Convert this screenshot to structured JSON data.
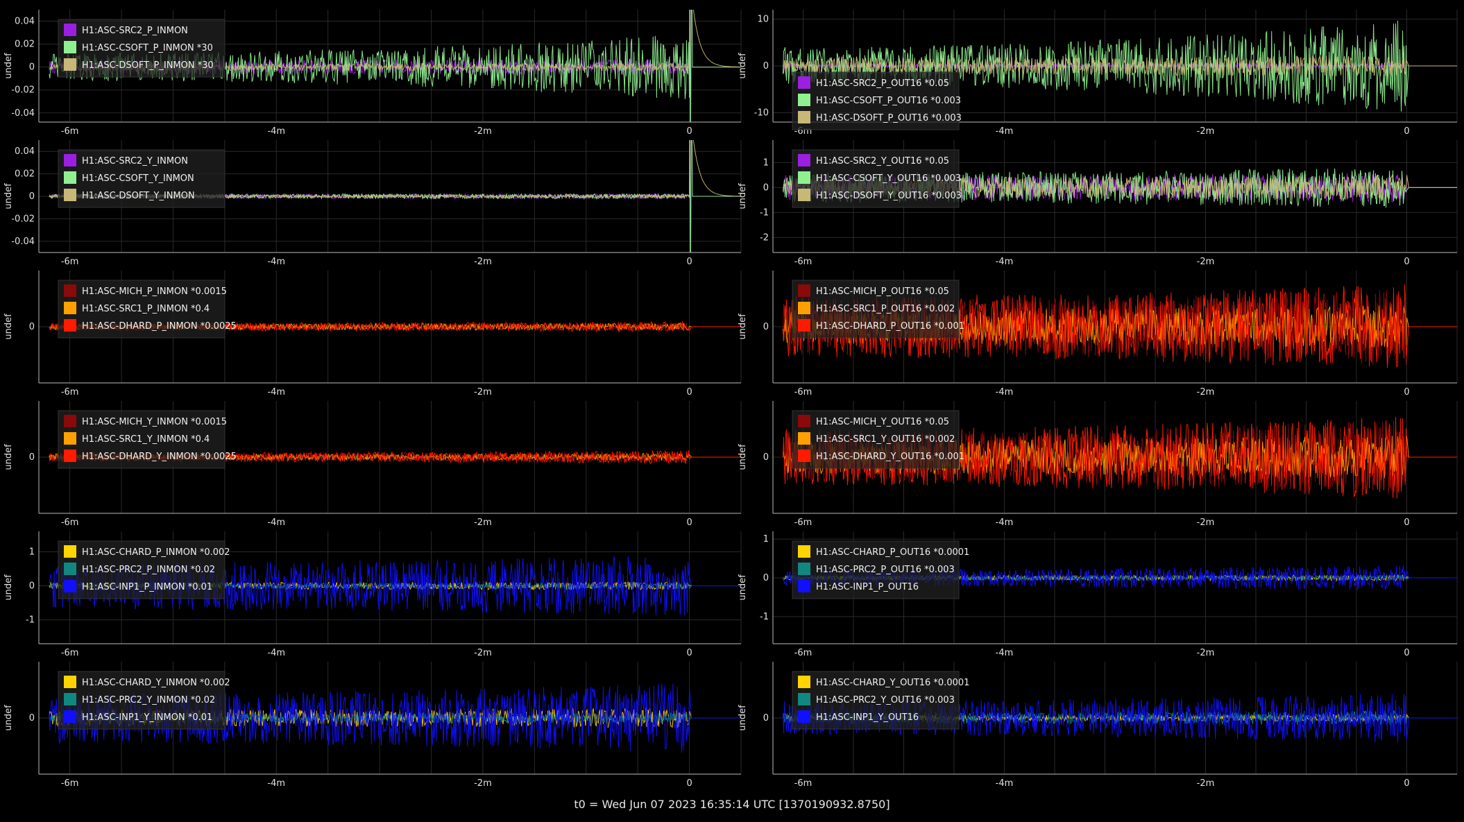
{
  "footer": "t0 = Wed Jun 07 2023 16:35:14 UTC [1370190932.8750]",
  "colors": {
    "background": "#000000",
    "grid": "#2a2a2a",
    "axis": "#bbbbbb",
    "legend_bg": "#222222"
  },
  "chart_data": [
    {
      "type": "line",
      "ylabel": "undef",
      "xticks": [
        "-6m",
        "-4m",
        "-2m",
        "0"
      ],
      "xtick_values": [
        -6,
        -4,
        -2,
        0
      ],
      "xlim": [
        -6.3,
        0.5
      ],
      "yticks": [
        "0.04",
        "0.02",
        "0",
        "-0.02",
        "-0.04"
      ],
      "ytick_values": [
        0.04,
        0.02,
        0,
        -0.02,
        -0.04
      ],
      "ylim": [
        -0.048,
        0.05
      ],
      "legend": "top-left",
      "series": [
        {
          "name": "H1:ASC-SRC2_P_INMON",
          "color": "#9b1fe0",
          "amp": 0.006,
          "grow": 0.2,
          "end": "spike"
        },
        {
          "name": "H1:ASC-CSOFT_P_INMON *30",
          "color": "#90f090",
          "amp": 0.012,
          "grow": 1.4,
          "end": "spike"
        },
        {
          "name": "H1:ASC-DSOFT_P_INMON *30",
          "color": "#c8b878",
          "amp": 0.003,
          "grow": 0.2,
          "end": "decay"
        }
      ]
    },
    {
      "type": "line",
      "ylabel": "undef",
      "xticks": [
        "-6m",
        "-4m",
        "-2m",
        "0"
      ],
      "xtick_values": [
        -6,
        -4,
        -2,
        0
      ],
      "xlim": [
        -6.3,
        0.5
      ],
      "yticks": [
        "10",
        "0",
        "-10"
      ],
      "ytick_values": [
        10,
        0,
        -10
      ],
      "ylim": [
        -12,
        12
      ],
      "legend": "bottom-left",
      "series": [
        {
          "name": "H1:ASC-SRC2_P_OUT16 *0.05",
          "color": "#9b1fe0",
          "amp": 0.5,
          "grow": 0.2,
          "end": "flat"
        },
        {
          "name": "H1:ASC-CSOFT_P_OUT16 *0.003",
          "color": "#90f090",
          "amp": 4,
          "grow": 1.5,
          "end": "flat"
        },
        {
          "name": "H1:ASC-DSOFT_P_OUT16 *0.003",
          "color": "#c8b878",
          "amp": 1.8,
          "grow": 0.3,
          "end": "flat"
        }
      ]
    },
    {
      "type": "line",
      "ylabel": "undef",
      "xticks": [
        "-6m",
        "-4m",
        "-2m",
        "0"
      ],
      "xtick_values": [
        -6,
        -4,
        -2,
        0
      ],
      "xlim": [
        -6.3,
        0.5
      ],
      "yticks": [
        "0.04",
        "0.02",
        "0",
        "-0.02",
        "-0.04"
      ],
      "ytick_values": [
        0.04,
        0.02,
        0,
        -0.02,
        -0.04
      ],
      "ylim": [
        -0.05,
        0.05
      ],
      "legend": "top-left",
      "series": [
        {
          "name": "H1:ASC-SRC2_Y_INMON",
          "color": "#9b1fe0",
          "amp": 0.002,
          "grow": 0.1,
          "end": "spike"
        },
        {
          "name": "H1:ASC-CSOFT_Y_INMON",
          "color": "#90f090",
          "amp": 0.002,
          "grow": 0.1,
          "end": "spike"
        },
        {
          "name": "H1:ASC-DSOFT_Y_INMON",
          "color": "#c8b878",
          "amp": 0.0015,
          "grow": 0.1,
          "end": "decay"
        }
      ]
    },
    {
      "type": "line",
      "ylabel": "undef",
      "xticks": [
        "-6m",
        "-4m",
        "-2m",
        "0"
      ],
      "xtick_values": [
        -6,
        -4,
        -2,
        0
      ],
      "xlim": [
        -6.3,
        0.5
      ],
      "yticks": [
        "1",
        "0",
        "-1",
        "-2"
      ],
      "ytick_values": [
        1,
        0,
        -1,
        -2
      ],
      "ylim": [
        -2.6,
        1.9
      ],
      "legend": "top-left",
      "series": [
        {
          "name": "H1:ASC-SRC2_Y_OUT16 *0.05",
          "color": "#9b1fe0",
          "amp": 0.5,
          "grow": 0.2,
          "end": "flat"
        },
        {
          "name": "H1:ASC-CSOFT_Y_OUT16 *0.003",
          "color": "#90f090",
          "amp": 0.6,
          "grow": 0.4,
          "end": "flat"
        },
        {
          "name": "H1:ASC-DSOFT_Y_OUT16 *0.003",
          "color": "#c8b878",
          "amp": 0.4,
          "grow": 0.3,
          "end": "flat"
        }
      ]
    },
    {
      "type": "line",
      "ylabel": "undef",
      "xticks": [
        "-6m",
        "-4m",
        "-2m",
        "0"
      ],
      "xtick_values": [
        -6,
        -4,
        -2,
        0
      ],
      "xlim": [
        -6.3,
        0.5
      ],
      "yticks": [
        "0"
      ],
      "ytick_values": [
        0
      ],
      "ylim": [
        -1,
        1
      ],
      "legend": "top-left",
      "series": [
        {
          "name": "H1:ASC-MICH_P_INMON *0.0015",
          "color": "#8a0a0a",
          "amp": 0.06,
          "grow": 0.3,
          "end": "flat"
        },
        {
          "name": "H1:ASC-SRC1_P_INMON *0.4",
          "color": "#ffa000",
          "amp": 0.05,
          "grow": 0.3,
          "end": "flat"
        },
        {
          "name": "H1:ASC-DHARD_P_INMON *0.0025",
          "color": "#ff1a00",
          "amp": 0.07,
          "grow": 0.3,
          "end": "flat"
        }
      ]
    },
    {
      "type": "line",
      "ylabel": "undef",
      "xticks": [
        "-6m",
        "-4m",
        "-2m",
        "0"
      ],
      "xtick_values": [
        -6,
        -4,
        -2,
        0
      ],
      "xlim": [
        -6.3,
        0.5
      ],
      "yticks": [
        "0"
      ],
      "ytick_values": [
        0
      ],
      "ylim": [
        -1,
        1
      ],
      "legend": "top-left",
      "series": [
        {
          "name": "H1:ASC-MICH_P_OUT16 *0.05",
          "color": "#8a0a0a",
          "amp": 0.5,
          "grow": 0.4,
          "end": "flat"
        },
        {
          "name": "H1:ASC-SRC1_P_OUT16 *0.002",
          "color": "#ffa000",
          "amp": 0.3,
          "grow": 0.3,
          "end": "flat"
        },
        {
          "name": "H1:ASC-DHARD_P_OUT16 *0.001",
          "color": "#ff1a00",
          "amp": 0.55,
          "grow": 0.4,
          "end": "flat"
        }
      ]
    },
    {
      "type": "line",
      "ylabel": "undef",
      "xticks": [
        "-6m",
        "-4m",
        "-2m",
        "0"
      ],
      "xtick_values": [
        -6,
        -4,
        -2,
        0
      ],
      "xlim": [
        -6.3,
        0.5
      ],
      "yticks": [
        "0"
      ],
      "ytick_values": [
        0
      ],
      "ylim": [
        -1,
        1
      ],
      "legend": "top-left",
      "series": [
        {
          "name": "H1:ASC-MICH_Y_INMON *0.0015",
          "color": "#8a0a0a",
          "amp": 0.07,
          "grow": 0.5,
          "end": "flat"
        },
        {
          "name": "H1:ASC-SRC1_Y_INMON *0.4",
          "color": "#ffa000",
          "amp": 0.05,
          "grow": 0.3,
          "end": "flat"
        },
        {
          "name": "H1:ASC-DHARD_Y_INMON *0.0025",
          "color": "#ff1a00",
          "amp": 0.08,
          "grow": 0.5,
          "end": "flat"
        }
      ]
    },
    {
      "type": "line",
      "ylabel": "undef",
      "xticks": [
        "-6m",
        "-4m",
        "-2m",
        "0"
      ],
      "xtick_values": [
        -6,
        -4,
        -2,
        0
      ],
      "xlim": [
        -6.3,
        0.5
      ],
      "yticks": [
        "0"
      ],
      "ytick_values": [
        0
      ],
      "ylim": [
        -1,
        1
      ],
      "legend": "top-left",
      "series": [
        {
          "name": "H1:ASC-MICH_Y_OUT16 *0.05",
          "color": "#8a0a0a",
          "amp": 0.45,
          "grow": 0.5,
          "end": "flat"
        },
        {
          "name": "H1:ASC-SRC1_Y_OUT16 *0.002",
          "color": "#ffa000",
          "amp": 0.3,
          "grow": 0.3,
          "end": "flat"
        },
        {
          "name": "H1:ASC-DHARD_Y_OUT16 *0.001",
          "color": "#ff1a00",
          "amp": 0.5,
          "grow": 0.5,
          "end": "flat"
        }
      ]
    },
    {
      "type": "line",
      "ylabel": "undef",
      "xticks": [
        "-6m",
        "-4m",
        "-2m",
        "0"
      ],
      "xtick_values": [
        -6,
        -4,
        -2,
        0
      ],
      "xlim": [
        -6.3,
        0.5
      ],
      "yticks": [
        "1",
        "0",
        "-1"
      ],
      "ytick_values": [
        1,
        0,
        -1
      ],
      "ylim": [
        -1.7,
        1.6
      ],
      "legend": "top-left",
      "series": [
        {
          "name": "H1:ASC-CHARD_P_INMON *0.002",
          "color": "#ffd400",
          "amp": 0.1,
          "grow": 0.2,
          "end": "flat"
        },
        {
          "name": "H1:ASC-PRC2_P_INMON *0.02",
          "color": "#108880",
          "amp": 0.08,
          "grow": 0.2,
          "end": "flat"
        },
        {
          "name": "H1:ASC-INP1_P_INMON *0.01",
          "color": "#1010ff",
          "amp": 0.7,
          "grow": 0.3,
          "end": "flat"
        }
      ]
    },
    {
      "type": "line",
      "ylabel": "undef",
      "xticks": [
        "-6m",
        "-4m",
        "-2m",
        "0"
      ],
      "xtick_values": [
        -6,
        -4,
        -2,
        0
      ],
      "xlim": [
        -6.3,
        0.5
      ],
      "yticks": [
        "1",
        "0",
        "-1"
      ],
      "ytick_values": [
        1,
        0,
        -1
      ],
      "ylim": [
        -1.7,
        1.2
      ],
      "legend": "top-left",
      "series": [
        {
          "name": "H1:ASC-CHARD_P_OUT16 *0.0001",
          "color": "#ffd400",
          "amp": 0.06,
          "grow": 0.2,
          "end": "flat"
        },
        {
          "name": "H1:ASC-PRC2_P_OUT16 *0.003",
          "color": "#108880",
          "amp": 0.06,
          "grow": 0.2,
          "end": "flat"
        },
        {
          "name": "H1:ASC-INP1_P_OUT16",
          "color": "#1010ff",
          "amp": 0.22,
          "grow": 0.5,
          "end": "flat"
        }
      ]
    },
    {
      "type": "line",
      "ylabel": "undef",
      "xticks": [
        "-6m",
        "-4m",
        "-2m",
        "0"
      ],
      "xtick_values": [
        -6,
        -4,
        -2,
        0
      ],
      "xlim": [
        -6.3,
        0.5
      ],
      "yticks": [
        "0"
      ],
      "ytick_values": [
        0
      ],
      "ylim": [
        -1,
        1
      ],
      "legend": "top-left",
      "series": [
        {
          "name": "H1:ASC-CHARD_Y_INMON *0.002",
          "color": "#ffd400",
          "amp": 0.15,
          "grow": 0.2,
          "end": "flat"
        },
        {
          "name": "H1:ASC-PRC2_Y_INMON *0.02",
          "color": "#108880",
          "amp": 0.08,
          "grow": 0.2,
          "end": "flat"
        },
        {
          "name": "H1:ASC-INP1_Y_INMON *0.01",
          "color": "#1010ff",
          "amp": 0.45,
          "grow": 0.4,
          "end": "flat"
        }
      ]
    },
    {
      "type": "line",
      "ylabel": "undef",
      "xticks": [
        "-6m",
        "-4m",
        "-2m",
        "0"
      ],
      "xtick_values": [
        -6,
        -4,
        -2,
        0
      ],
      "xlim": [
        -6.3,
        0.5
      ],
      "yticks": [
        "0"
      ],
      "ytick_values": [
        0
      ],
      "ylim": [
        -1,
        1
      ],
      "legend": "top-left",
      "series": [
        {
          "name": "H1:ASC-CHARD_Y_OUT16 *0.0001",
          "color": "#ffd400",
          "amp": 0.05,
          "grow": 0.2,
          "end": "flat"
        },
        {
          "name": "H1:ASC-PRC2_Y_OUT16 *0.003",
          "color": "#108880",
          "amp": 0.1,
          "grow": 0.3,
          "end": "flat"
        },
        {
          "name": "H1:ASC-INP1_Y_OUT16",
          "color": "#1010ff",
          "amp": 0.3,
          "grow": 0.5,
          "end": "flat"
        }
      ]
    }
  ]
}
